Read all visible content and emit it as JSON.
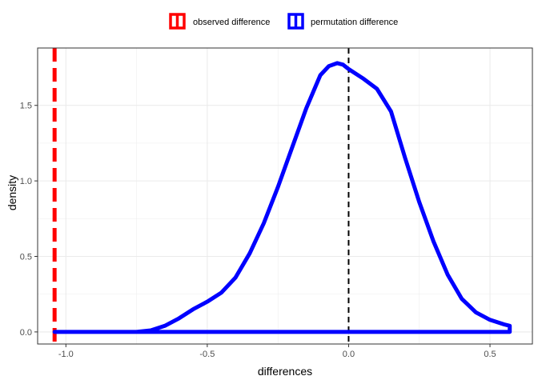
{
  "chart_data": {
    "type": "line",
    "title": "",
    "xlabel": "differences",
    "ylabel": "density",
    "xlim": [
      -1.1,
      0.65
    ],
    "ylim": [
      -0.08,
      1.88
    ],
    "x_ticks": [
      -1.0,
      -0.5,
      0.0,
      0.5
    ],
    "x_tick_labels": [
      "-1.0",
      "-0.5",
      "0.0",
      "0.5"
    ],
    "y_ticks": [
      0.0,
      0.5,
      1.0,
      1.5
    ],
    "y_tick_labels": [
      "0.0",
      "0.5",
      "1.0",
      "1.5"
    ],
    "grid": true,
    "legend_position": "top",
    "series": [
      {
        "name": "permutation difference",
        "color": "#0000ff",
        "style": "solid",
        "x": [
          -1.04,
          -0.75,
          -0.7,
          -0.65,
          -0.6,
          -0.55,
          -0.5,
          -0.45,
          -0.4,
          -0.35,
          -0.3,
          -0.25,
          -0.2,
          -0.15,
          -0.1,
          -0.07,
          -0.04,
          -0.02,
          0.0,
          0.05,
          0.1,
          0.15,
          0.2,
          0.25,
          0.3,
          0.35,
          0.4,
          0.45,
          0.5,
          0.55,
          0.57,
          0.57,
          -1.04
        ],
        "y": [
          0.0,
          0.0,
          0.01,
          0.04,
          0.09,
          0.15,
          0.2,
          0.26,
          0.36,
          0.52,
          0.72,
          0.96,
          1.22,
          1.48,
          1.7,
          1.76,
          1.78,
          1.77,
          1.74,
          1.68,
          1.61,
          1.46,
          1.15,
          0.86,
          0.6,
          0.38,
          0.22,
          0.13,
          0.08,
          0.05,
          0.04,
          0.0,
          0.0
        ]
      }
    ],
    "reference_lines": [
      {
        "name": "observed difference",
        "x": -1.04,
        "color": "#ff0000",
        "style": "dashed"
      },
      {
        "name": "",
        "x": 0.0,
        "color": "#000000",
        "style": "dashed"
      }
    ]
  },
  "legend": {
    "items": [
      {
        "label": "observed difference",
        "color": "#ff0000"
      },
      {
        "label": "permutation difference",
        "color": "#0000ff"
      }
    ]
  },
  "theme": {
    "panel_border": "#333333",
    "grid_color": "#ebebeb"
  }
}
